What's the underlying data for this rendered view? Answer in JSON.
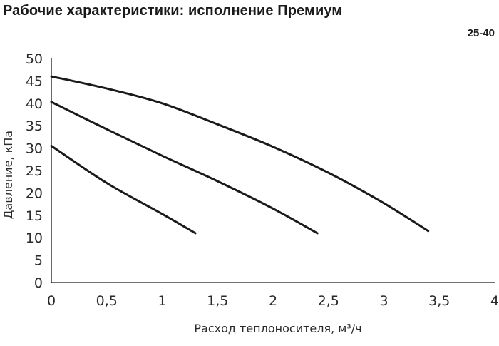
{
  "header": {
    "title": "Рабочие характеристики: исполнение Премиум",
    "model": "25-40"
  },
  "chart_data": {
    "type": "line",
    "title": "Рабочие характеристики: исполнение Премиум",
    "subtitle": "25-40",
    "xlabel": "Расход теплоносителя, м³/ч",
    "ylabel": "Давление, кПа",
    "xlim": [
      0,
      4
    ],
    "ylim": [
      0,
      50
    ],
    "x_ticks": [
      "0",
      "0,5",
      "1",
      "1,5",
      "2",
      "2,5",
      "3",
      "3,5",
      "4"
    ],
    "y_ticks": [
      "0",
      "5",
      "10",
      "15",
      "20",
      "25",
      "30",
      "35",
      "40",
      "45",
      "50"
    ],
    "grid": false,
    "legend": null,
    "series": [
      {
        "points": [
          [
            0,
            46
          ],
          [
            0.5,
            43.3
          ],
          [
            1,
            40
          ],
          [
            1.5,
            35.3
          ],
          [
            2,
            30.3
          ],
          [
            2.5,
            24.5
          ],
          [
            3,
            17.7
          ],
          [
            3.4,
            11.5
          ]
        ]
      },
      {
        "points": [
          [
            0,
            40.3
          ],
          [
            0.5,
            34.2
          ],
          [
            1,
            28.3
          ],
          [
            1.5,
            22.6
          ],
          [
            2,
            16.5
          ],
          [
            2.4,
            11
          ]
        ]
      },
      {
        "points": [
          [
            0,
            30.5
          ],
          [
            0.5,
            22.2
          ],
          [
            1,
            15.3
          ],
          [
            1.3,
            11
          ]
        ]
      }
    ],
    "colors": {
      "curve": "#1a1a1a",
      "axis": "#1a1a1a",
      "text": "#2a2a2a"
    }
  }
}
